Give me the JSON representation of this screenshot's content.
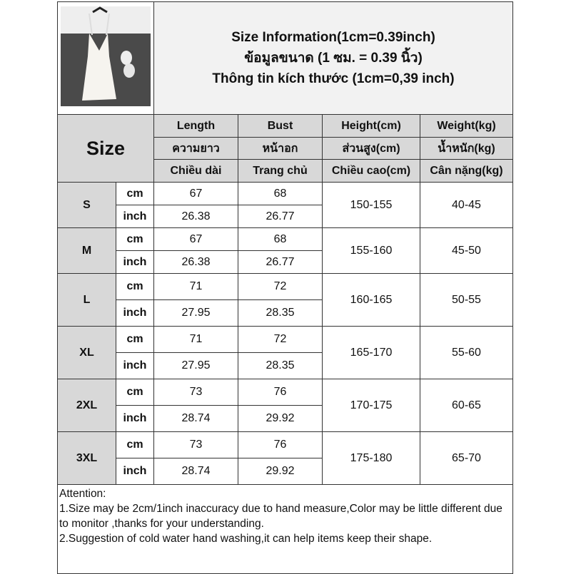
{
  "title_lines": [
    "Size Information(1cm=0.39inch)",
    "ข้อมูลขนาด (1 ซม. = 0.39 นิ้ว)",
    "Thông tin kích thước (1cm=0,39 inch)"
  ],
  "size_label": "Size",
  "headers": [
    [
      "Length",
      "ความยาว",
      "Chiều dài"
    ],
    [
      "Bust",
      "หน้าอก",
      "Trang chủ"
    ],
    [
      "Height(cm)",
      "ส่วนสูง(cm)",
      "Chiều cao(cm)"
    ],
    [
      "Weight(kg)",
      "น้ำหนัก(kg)",
      "Cân nặng(kg)"
    ]
  ],
  "units": [
    "cm",
    "inch"
  ],
  "rows": [
    {
      "size": "S",
      "length": [
        "67",
        "26.38"
      ],
      "bust": [
        "68",
        "26.77"
      ],
      "height": "150-155",
      "weight": "40-45"
    },
    {
      "size": "M",
      "length": [
        "67",
        "26.38"
      ],
      "bust": [
        "68",
        "26.77"
      ],
      "height": "155-160",
      "weight": "45-50"
    },
    {
      "size": "L",
      "length": [
        "71",
        "27.95"
      ],
      "bust": [
        "72",
        "28.35"
      ],
      "height": "160-165",
      "weight": "50-55"
    },
    {
      "size": "XL",
      "length": [
        "71",
        "27.95"
      ],
      "bust": [
        "72",
        "28.35"
      ],
      "height": "165-170",
      "weight": "55-60"
    },
    {
      "size": "2XL",
      "length": [
        "73",
        "28.74"
      ],
      "bust": [
        "76",
        "29.92"
      ],
      "height": "170-175",
      "weight": "60-65"
    },
    {
      "size": "3XL",
      "length": [
        "73",
        "28.74"
      ],
      "bust": [
        "76",
        "29.92"
      ],
      "height": "175-180",
      "weight": "65-70"
    }
  ],
  "attention": {
    "heading": "Attention:",
    "notes": [
      "1.Size may be 2cm/1inch inaccuracy due to hand measure,Color may be little different due to monitor ,thanks for your understanding.",
      "2.Suggestion of cold water hand washing,it can help items keep their shape."
    ]
  }
}
